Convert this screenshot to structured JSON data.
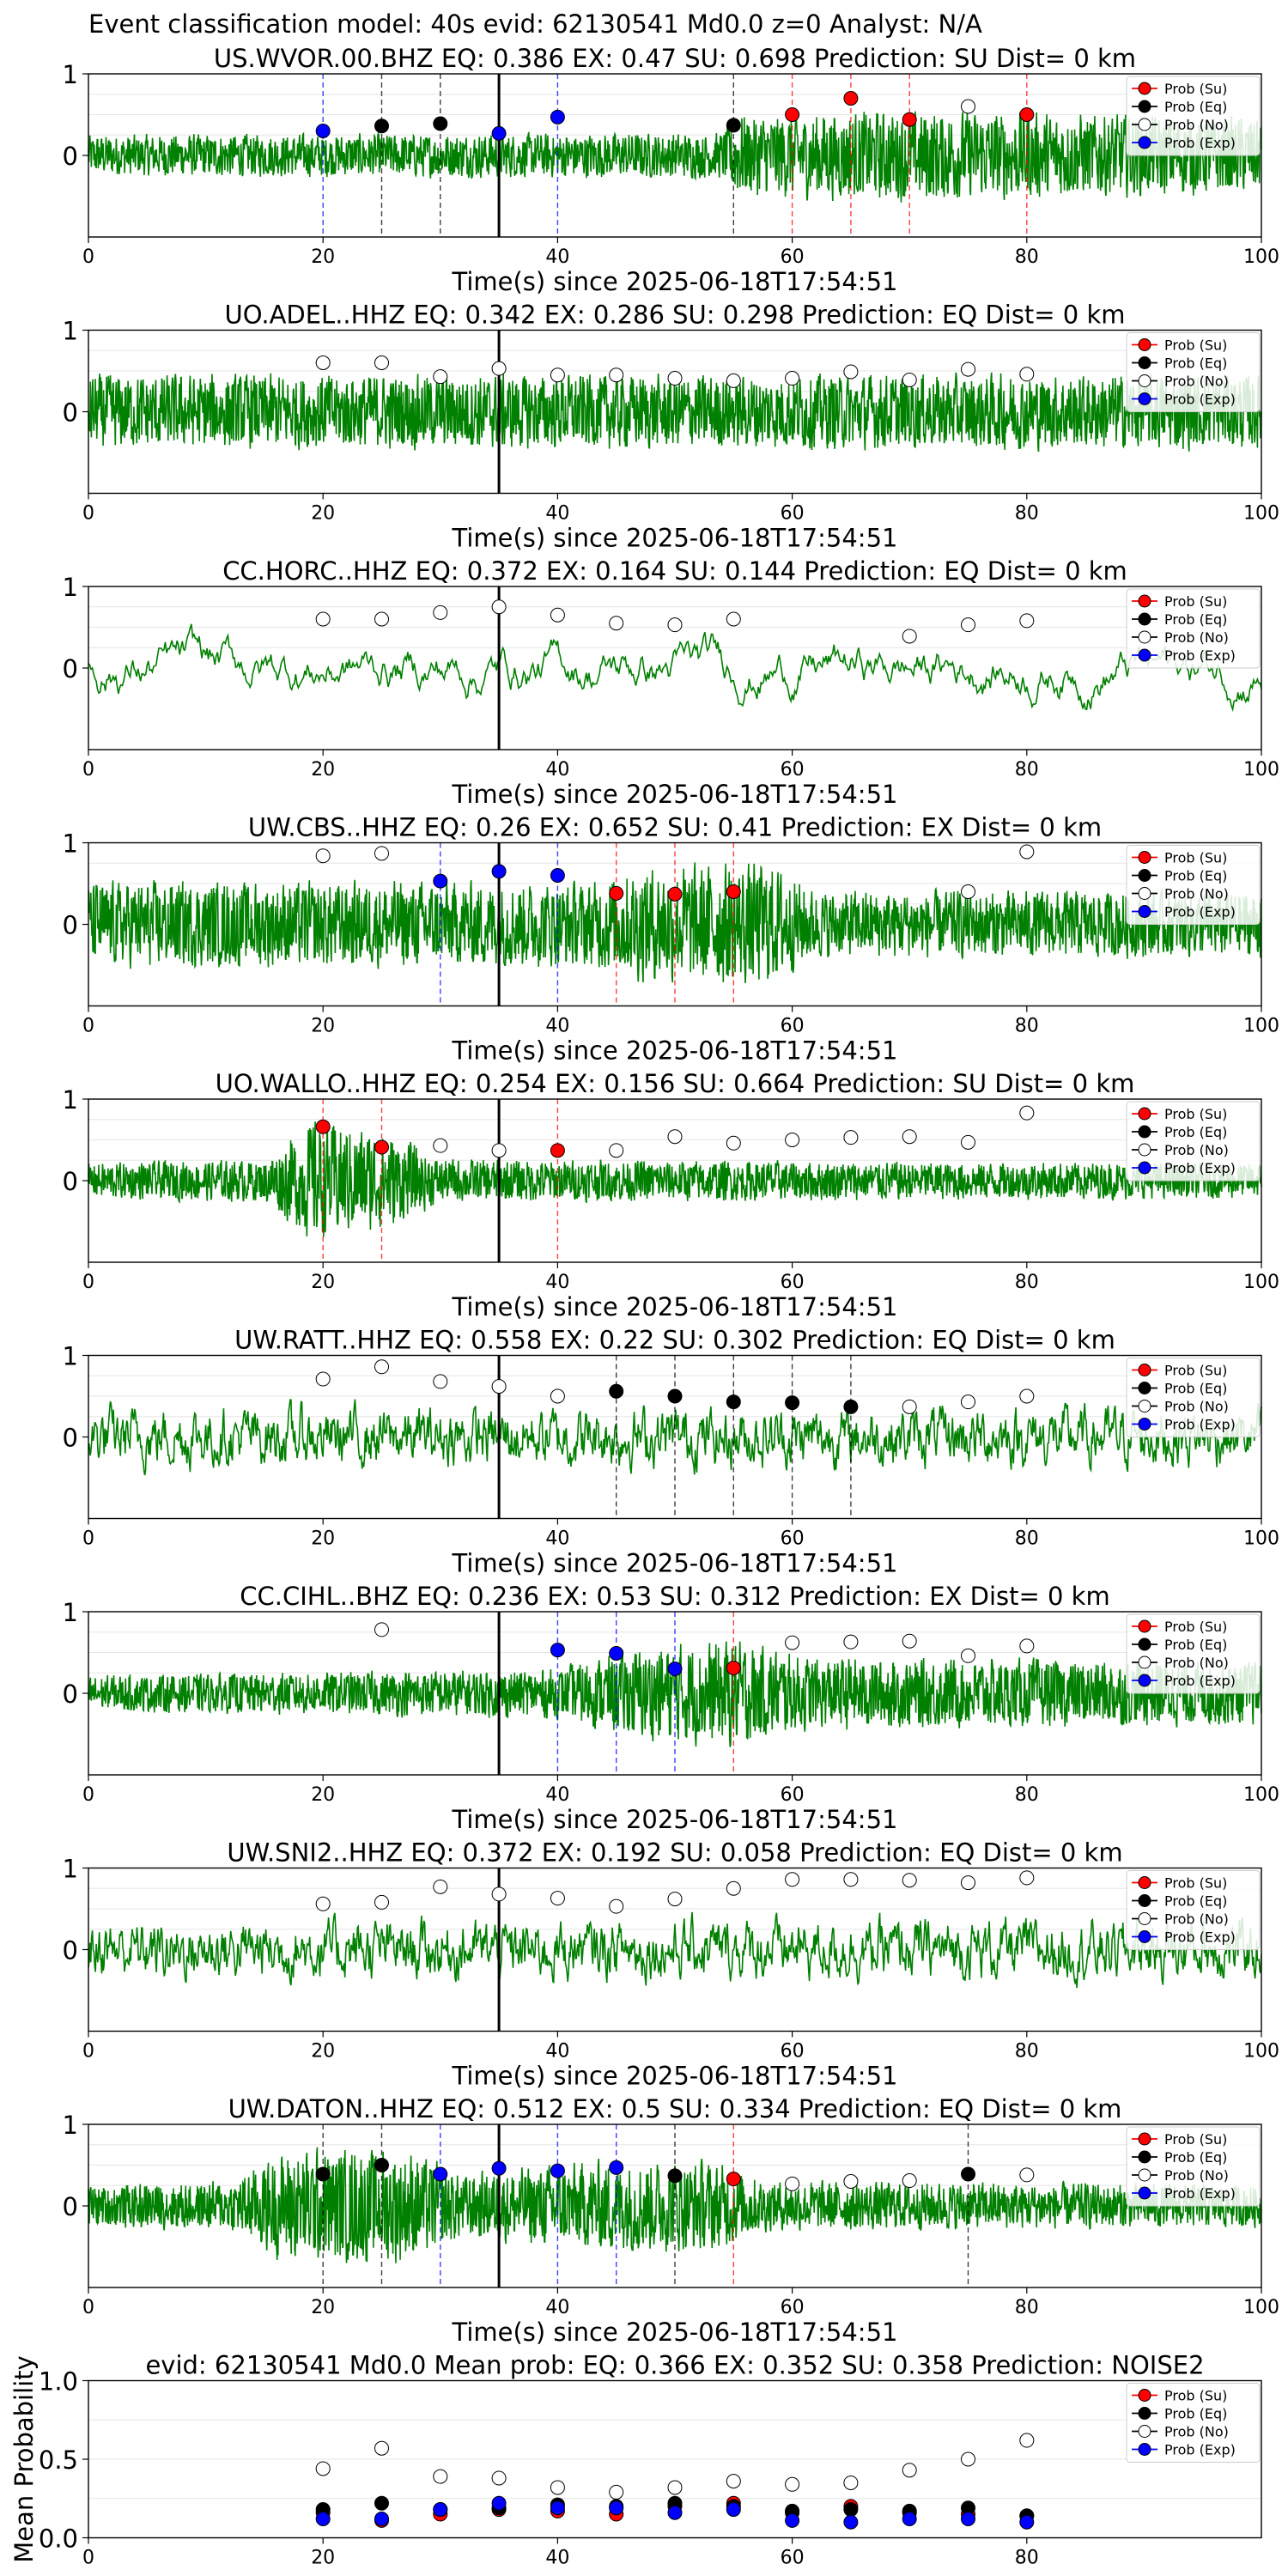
{
  "suptitle": "Event classification model: 40s evid: 62130541 Md0.0 z=0 Analyst: N/A",
  "legend_labels": [
    "Prob (Su)",
    "Prob (Eq)",
    "Prob (No)",
    "Prob (Exp)"
  ],
  "colors": {
    "waveform": "#008000",
    "su": "#ff0000",
    "eq": "#000000",
    "no": "#ffffff",
    "exp": "#0000ff",
    "event_line": "#000000",
    "grid": "#e6e6e6"
  },
  "chart_data": [
    {
      "type": "line",
      "station": "US.WVOR.00.BHZ",
      "title": "US.WVOR.00.BHZ   EQ: 0.386  EX: 0.47  SU: 0.698   Prediction: SU    Dist= 0 km",
      "xlabel": "Time(s) since 2025-06-18T17:54:51",
      "xlim": [
        0,
        100
      ],
      "ylim": [
        -1,
        1
      ],
      "xticks": [
        0,
        20,
        40,
        60,
        80,
        100
      ],
      "yticks": [
        1,
        0
      ],
      "event_line_x": 35,
      "waveform": {
        "amplitude": 0.35,
        "envelope": [
          [
            0,
            0.5
          ],
          [
            54,
            0.55
          ],
          [
            55,
            1.0
          ],
          [
            72,
            1.1
          ],
          [
            100,
            0.9
          ]
        ],
        "roughness": "high"
      },
      "markers": [
        {
          "x": 20,
          "y": 0.3,
          "class": "exp"
        },
        {
          "x": 25,
          "y": 0.36,
          "class": "eq"
        },
        {
          "x": 30,
          "y": 0.39,
          "class": "eq"
        },
        {
          "x": 35,
          "y": 0.27,
          "class": "exp"
        },
        {
          "x": 40,
          "y": 0.47,
          "class": "exp"
        },
        {
          "x": 55,
          "y": 0.37,
          "class": "eq"
        },
        {
          "x": 60,
          "y": 0.5,
          "class": "su"
        },
        {
          "x": 65,
          "y": 0.7,
          "class": "su"
        },
        {
          "x": 70,
          "y": 0.44,
          "class": "su"
        },
        {
          "x": 75,
          "y": 0.6,
          "class": "no"
        },
        {
          "x": 80,
          "y": 0.5,
          "class": "su"
        }
      ]
    },
    {
      "type": "line",
      "station": "UO.ADEL..HHZ",
      "title": "UO.ADEL..HHZ   EQ: 0.342  EX: 0.286  SU: 0.298   Prediction: EQ    Dist= 0 km",
      "xlabel": "Time(s) since 2025-06-18T17:54:51",
      "xlim": [
        0,
        100
      ],
      "ylim": [
        -1,
        1
      ],
      "xticks": [
        0,
        20,
        40,
        60,
        80,
        100
      ],
      "yticks": [
        1,
        0
      ],
      "event_line_x": 35,
      "waveform": {
        "amplitude": 0.35,
        "envelope": [
          [
            0,
            0.9
          ],
          [
            100,
            0.9
          ]
        ],
        "roughness": "high"
      },
      "markers": [
        {
          "x": 20,
          "y": 0.6,
          "class": "no"
        },
        {
          "x": 25,
          "y": 0.6,
          "class": "no"
        },
        {
          "x": 30,
          "y": 0.43,
          "class": "no"
        },
        {
          "x": 35,
          "y": 0.53,
          "class": "no"
        },
        {
          "x": 40,
          "y": 0.45,
          "class": "no"
        },
        {
          "x": 45,
          "y": 0.45,
          "class": "no"
        },
        {
          "x": 50,
          "y": 0.41,
          "class": "no"
        },
        {
          "x": 55,
          "y": 0.38,
          "class": "no"
        },
        {
          "x": 60,
          "y": 0.41,
          "class": "no"
        },
        {
          "x": 65,
          "y": 0.49,
          "class": "no"
        },
        {
          "x": 70,
          "y": 0.39,
          "class": "no"
        },
        {
          "x": 75,
          "y": 0.52,
          "class": "no"
        },
        {
          "x": 80,
          "y": 0.46,
          "class": "no"
        }
      ]
    },
    {
      "type": "line",
      "station": "CC.HORC..HHZ",
      "title": "CC.HORC..HHZ   EQ: 0.372  EX: 0.164  SU: 0.144   Prediction: EQ    Dist= 0 km",
      "xlabel": "Time(s) since 2025-06-18T17:54:51",
      "xlim": [
        0,
        100
      ],
      "ylim": [
        -1,
        1
      ],
      "xticks": [
        0,
        20,
        40,
        60,
        80,
        100
      ],
      "yticks": [
        1,
        0
      ],
      "event_line_x": 35,
      "waveform": {
        "amplitude": 0.5,
        "envelope": [
          [
            0,
            1.0
          ],
          [
            100,
            1.0
          ]
        ],
        "roughness": "low"
      },
      "markers": [
        {
          "x": 20,
          "y": 0.6,
          "class": "no"
        },
        {
          "x": 25,
          "y": 0.6,
          "class": "no"
        },
        {
          "x": 30,
          "y": 0.68,
          "class": "no"
        },
        {
          "x": 35,
          "y": 0.75,
          "class": "no"
        },
        {
          "x": 40,
          "y": 0.65,
          "class": "no"
        },
        {
          "x": 45,
          "y": 0.55,
          "class": "no"
        },
        {
          "x": 50,
          "y": 0.53,
          "class": "no"
        },
        {
          "x": 55,
          "y": 0.6,
          "class": "no"
        },
        {
          "x": 70,
          "y": 0.39,
          "class": "no"
        },
        {
          "x": 75,
          "y": 0.53,
          "class": "no"
        },
        {
          "x": 80,
          "y": 0.58,
          "class": "no"
        }
      ]
    },
    {
      "type": "line",
      "station": "UW.CBS..HHZ",
      "title": "UW.CBS..HHZ   EQ: 0.26  EX: 0.652  SU: 0.41   Prediction: EX    Dist= 0 km",
      "xlabel": "Time(s) since 2025-06-18T17:54:51",
      "xlim": [
        0,
        100
      ],
      "ylim": [
        -1,
        1
      ],
      "xticks": [
        0,
        20,
        40,
        60,
        80,
        100
      ],
      "yticks": [
        1,
        0
      ],
      "event_line_x": 35,
      "waveform": {
        "amplitude": 0.4,
        "envelope": [
          [
            0,
            0.9
          ],
          [
            43,
            0.9
          ],
          [
            47,
            1.2
          ],
          [
            58,
            1.3
          ],
          [
            62,
            0.7
          ],
          [
            100,
            0.7
          ]
        ],
        "roughness": "high"
      },
      "markers": [
        {
          "x": 20,
          "y": 0.84,
          "class": "no"
        },
        {
          "x": 25,
          "y": 0.87,
          "class": "no"
        },
        {
          "x": 30,
          "y": 0.53,
          "class": "exp"
        },
        {
          "x": 35,
          "y": 0.65,
          "class": "exp"
        },
        {
          "x": 40,
          "y": 0.6,
          "class": "exp"
        },
        {
          "x": 45,
          "y": 0.38,
          "class": "su"
        },
        {
          "x": 50,
          "y": 0.37,
          "class": "su"
        },
        {
          "x": 55,
          "y": 0.4,
          "class": "su"
        },
        {
          "x": 75,
          "y": 0.4,
          "class": "no"
        },
        {
          "x": 80,
          "y": 0.89,
          "class": "no"
        }
      ]
    },
    {
      "type": "line",
      "station": "UO.WALLO..HHZ",
      "title": "UO.WALLO..HHZ   EQ: 0.254  EX: 0.156  SU: 0.664   Prediction: SU    Dist= 0 km",
      "xlabel": "Time(s) since 2025-06-18T17:54:51",
      "xlim": [
        0,
        100
      ],
      "ylim": [
        -1,
        1
      ],
      "xticks": [
        0,
        20,
        40,
        60,
        80,
        100
      ],
      "yticks": [
        1,
        0
      ],
      "event_line_x": 35,
      "waveform": {
        "amplitude": 0.3,
        "envelope": [
          [
            0,
            0.5
          ],
          [
            15,
            0.6
          ],
          [
            19,
            1.7
          ],
          [
            26,
            1.3
          ],
          [
            30,
            0.6
          ],
          [
            100,
            0.5
          ]
        ],
        "roughness": "high"
      },
      "markers": [
        {
          "x": 20,
          "y": 0.66,
          "class": "su"
        },
        {
          "x": 25,
          "y": 0.41,
          "class": "su"
        },
        {
          "x": 30,
          "y": 0.43,
          "class": "no"
        },
        {
          "x": 35,
          "y": 0.37,
          "class": "no"
        },
        {
          "x": 40,
          "y": 0.37,
          "class": "su"
        },
        {
          "x": 45,
          "y": 0.37,
          "class": "no"
        },
        {
          "x": 50,
          "y": 0.54,
          "class": "no"
        },
        {
          "x": 55,
          "y": 0.46,
          "class": "no"
        },
        {
          "x": 60,
          "y": 0.5,
          "class": "no"
        },
        {
          "x": 65,
          "y": 0.53,
          "class": "no"
        },
        {
          "x": 70,
          "y": 0.54,
          "class": "no"
        },
        {
          "x": 75,
          "y": 0.47,
          "class": "no"
        },
        {
          "x": 80,
          "y": 0.83,
          "class": "no"
        }
      ]
    },
    {
      "type": "line",
      "station": "UW.RATT..HHZ",
      "title": "UW.RATT..HHZ   EQ: 0.558  EX: 0.22  SU: 0.302   Prediction: EQ    Dist= 0 km",
      "xlabel": "Time(s) since 2025-06-18T17:54:51",
      "xlim": [
        0,
        100
      ],
      "ylim": [
        -1,
        1
      ],
      "xticks": [
        0,
        20,
        40,
        60,
        80,
        100
      ],
      "yticks": [
        1,
        0
      ],
      "event_line_x": 35,
      "waveform": {
        "amplitude": 0.4,
        "envelope": [
          [
            0,
            1.0
          ],
          [
            100,
            1.0
          ]
        ],
        "roughness": "medium"
      },
      "markers": [
        {
          "x": 20,
          "y": 0.71,
          "class": "no"
        },
        {
          "x": 25,
          "y": 0.86,
          "class": "no"
        },
        {
          "x": 30,
          "y": 0.68,
          "class": "no"
        },
        {
          "x": 35,
          "y": 0.62,
          "class": "no"
        },
        {
          "x": 40,
          "y": 0.5,
          "class": "no"
        },
        {
          "x": 45,
          "y": 0.56,
          "class": "eq"
        },
        {
          "x": 50,
          "y": 0.5,
          "class": "eq"
        },
        {
          "x": 55,
          "y": 0.43,
          "class": "eq"
        },
        {
          "x": 60,
          "y": 0.42,
          "class": "eq"
        },
        {
          "x": 65,
          "y": 0.37,
          "class": "eq"
        },
        {
          "x": 70,
          "y": 0.37,
          "class": "no"
        },
        {
          "x": 75,
          "y": 0.43,
          "class": "no"
        },
        {
          "x": 80,
          "y": 0.5,
          "class": "no"
        }
      ]
    },
    {
      "type": "line",
      "station": "CC.CIHL..BHZ",
      "title": "CC.CIHL..BHZ   EQ: 0.236  EX: 0.53  SU: 0.312   Prediction: EX    Dist= 0 km",
      "xlabel": "Time(s) since 2025-06-18T17:54:51",
      "xlim": [
        0,
        100
      ],
      "ylim": [
        -1,
        1
      ],
      "xticks": [
        0,
        20,
        40,
        60,
        80,
        100
      ],
      "yticks": [
        1,
        0
      ],
      "event_line_x": 35,
      "waveform": {
        "amplitude": 0.3,
        "envelope": [
          [
            0,
            0.5
          ],
          [
            40,
            0.7
          ],
          [
            47,
            1.3
          ],
          [
            55,
            1.5
          ],
          [
            62,
            1.0
          ],
          [
            100,
            0.9
          ]
        ],
        "roughness": "high"
      },
      "markers": [
        {
          "x": 25,
          "y": 0.78,
          "class": "no"
        },
        {
          "x": 40,
          "y": 0.53,
          "class": "exp"
        },
        {
          "x": 45,
          "y": 0.49,
          "class": "exp"
        },
        {
          "x": 50,
          "y": 0.3,
          "class": "exp"
        },
        {
          "x": 55,
          "y": 0.31,
          "class": "su"
        },
        {
          "x": 60,
          "y": 0.62,
          "class": "no"
        },
        {
          "x": 65,
          "y": 0.63,
          "class": "no"
        },
        {
          "x": 70,
          "y": 0.64,
          "class": "no"
        },
        {
          "x": 75,
          "y": 0.46,
          "class": "no"
        },
        {
          "x": 80,
          "y": 0.58,
          "class": "no"
        }
      ]
    },
    {
      "type": "line",
      "station": "UW.SNI2..HHZ",
      "title": "UW.SNI2..HHZ   EQ: 0.372  EX: 0.192  SU: 0.058   Prediction: EQ    Dist= 0 km",
      "xlabel": "Time(s) since 2025-06-18T17:54:51",
      "xlim": [
        0,
        100
      ],
      "ylim": [
        -1,
        1
      ],
      "xticks": [
        0,
        20,
        40,
        60,
        80,
        100
      ],
      "yticks": [
        1,
        0
      ],
      "event_line_x": 35,
      "waveform": {
        "amplitude": 0.4,
        "envelope": [
          [
            0,
            1.0
          ],
          [
            100,
            1.0
          ]
        ],
        "roughness": "medium"
      },
      "markers": [
        {
          "x": 20,
          "y": 0.56,
          "class": "no"
        },
        {
          "x": 25,
          "y": 0.58,
          "class": "no"
        },
        {
          "x": 30,
          "y": 0.77,
          "class": "no"
        },
        {
          "x": 35,
          "y": 0.68,
          "class": "no"
        },
        {
          "x": 40,
          "y": 0.63,
          "class": "no"
        },
        {
          "x": 45,
          "y": 0.53,
          "class": "no"
        },
        {
          "x": 50,
          "y": 0.62,
          "class": "no"
        },
        {
          "x": 55,
          "y": 0.75,
          "class": "no"
        },
        {
          "x": 60,
          "y": 0.86,
          "class": "no"
        },
        {
          "x": 65,
          "y": 0.86,
          "class": "no"
        },
        {
          "x": 70,
          "y": 0.85,
          "class": "no"
        },
        {
          "x": 75,
          "y": 0.82,
          "class": "no"
        },
        {
          "x": 80,
          "y": 0.88,
          "class": "no"
        }
      ]
    },
    {
      "type": "line",
      "station": "UW.DATON..HHZ",
      "title": "UW.DATON..HHZ   EQ: 0.512  EX: 0.5  SU: 0.334   Prediction: EQ    Dist= 0 km",
      "xlabel": "Time(s) since 2025-06-18T17:54:51",
      "xlim": [
        0,
        100
      ],
      "ylim": [
        -1,
        1
      ],
      "xticks": [
        0,
        20,
        40,
        60,
        80,
        100
      ],
      "yticks": [
        1,
        0
      ],
      "event_line_x": 35,
      "waveform": {
        "amplitude": 0.3,
        "envelope": [
          [
            0,
            0.6
          ],
          [
            12,
            0.7
          ],
          [
            17,
            1.6
          ],
          [
            27,
            1.6
          ],
          [
            32,
            0.9
          ],
          [
            44,
            1.3
          ],
          [
            53,
            1.3
          ],
          [
            58,
            0.7
          ],
          [
            100,
            0.6
          ]
        ],
        "roughness": "high"
      },
      "markers": [
        {
          "x": 20,
          "y": 0.39,
          "class": "eq"
        },
        {
          "x": 25,
          "y": 0.5,
          "class": "eq"
        },
        {
          "x": 30,
          "y": 0.39,
          "class": "exp"
        },
        {
          "x": 35,
          "y": 0.46,
          "class": "exp"
        },
        {
          "x": 40,
          "y": 0.43,
          "class": "exp"
        },
        {
          "x": 45,
          "y": 0.47,
          "class": "exp"
        },
        {
          "x": 50,
          "y": 0.37,
          "class": "eq"
        },
        {
          "x": 55,
          "y": 0.33,
          "class": "su"
        },
        {
          "x": 60,
          "y": 0.27,
          "class": "no"
        },
        {
          "x": 65,
          "y": 0.3,
          "class": "no"
        },
        {
          "x": 70,
          "y": 0.31,
          "class": "no"
        },
        {
          "x": 75,
          "y": 0.39,
          "class": "eq"
        },
        {
          "x": 80,
          "y": 0.38,
          "class": "no"
        }
      ]
    },
    {
      "type": "scatter",
      "title": "evid: 62130541  Md0.0   Mean prob:    EQ: 0.366  EX: 0.352  SU: 0.358   Prediction: NOISE2",
      "xlabel": "",
      "ylabel": "Mean Probability",
      "xlim": [
        0,
        100
      ],
      "ylim": [
        0,
        1
      ],
      "xticks": [
        0,
        20,
        40,
        60,
        80
      ],
      "yticks": [
        1.0,
        0.5,
        0.0
      ],
      "x": [
        20,
        25,
        30,
        35,
        40,
        45,
        50,
        55,
        60,
        65,
        70,
        75,
        80
      ],
      "series": [
        {
          "name": "Prob (Su)",
          "class": "su",
          "values": [
            0.16,
            0.11,
            0.15,
            0.18,
            0.17,
            0.15,
            0.2,
            0.22,
            0.16,
            0.2,
            0.16,
            0.15,
            0.14
          ]
        },
        {
          "name": "Prob (Eq)",
          "class": "eq",
          "values": [
            0.18,
            0.22,
            0.18,
            0.19,
            0.21,
            0.2,
            0.22,
            0.2,
            0.17,
            0.18,
            0.17,
            0.19,
            0.14
          ]
        },
        {
          "name": "Prob (No)",
          "class": "no",
          "values": [
            0.44,
            0.57,
            0.39,
            0.38,
            0.32,
            0.29,
            0.32,
            0.36,
            0.34,
            0.35,
            0.43,
            0.5,
            0.62
          ]
        },
        {
          "name": "Prob (Exp)",
          "class": "exp",
          "values": [
            0.12,
            0.12,
            0.18,
            0.22,
            0.19,
            0.19,
            0.16,
            0.18,
            0.11,
            0.1,
            0.12,
            0.12,
            0.1
          ]
        }
      ]
    }
  ]
}
